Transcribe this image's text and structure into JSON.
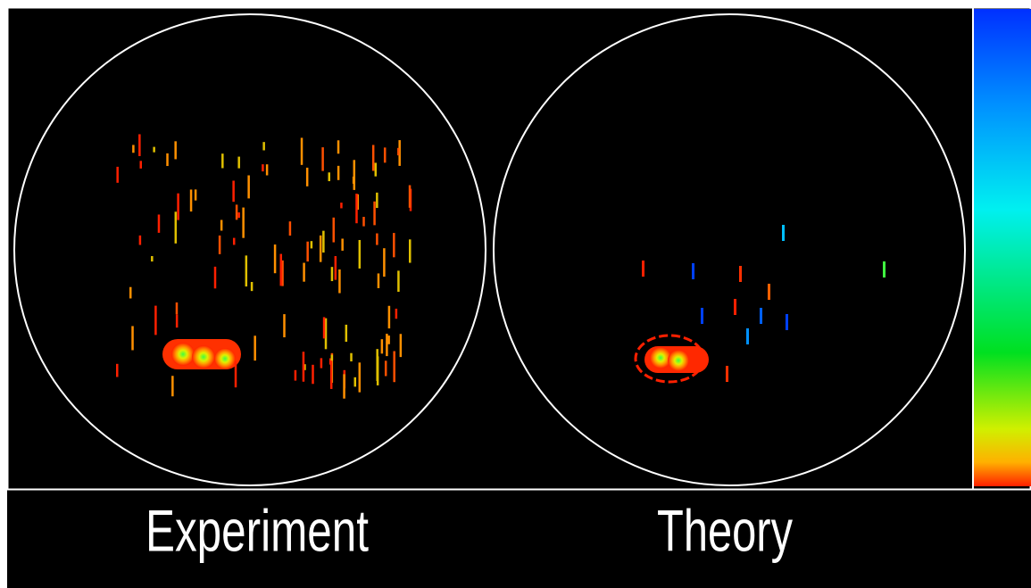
{
  "panels": [
    {
      "label": "Experiment"
    },
    {
      "label": "Theory"
    }
  ]
}
